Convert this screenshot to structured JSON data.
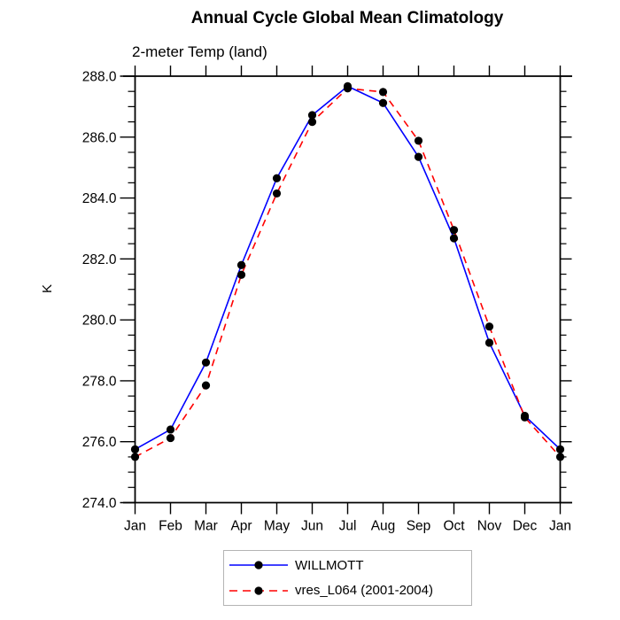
{
  "title": "Annual Cycle Global Mean Climatology",
  "chart_data": {
    "type": "line",
    "title": "Annual Cycle Global Mean Climatology",
    "subtitle": "2-meter Temp (land)",
    "ylabel": "K",
    "xlabel": "",
    "x": [
      "Jan",
      "Feb",
      "Mar",
      "Apr",
      "May",
      "Jun",
      "Jul",
      "Aug",
      "Sep",
      "Oct",
      "Nov",
      "Dec",
      "Jan"
    ],
    "ylim": [
      274.0,
      288.0
    ],
    "ytick_step": 2.0,
    "ytick_minor_step": 0.5,
    "ytick_label_format": "one_decimal",
    "grid": false,
    "legend_position": "bottom-center",
    "axis_color": "#000000",
    "marker_color": "#000000",
    "series": [
      {
        "name": "WILLMOTT",
        "color": "#0000ff",
        "dash": "none",
        "marker": "filled-circle",
        "values": [
          275.75,
          276.4,
          278.6,
          281.8,
          284.65,
          286.72,
          287.67,
          287.12,
          285.35,
          282.68,
          279.25,
          276.85,
          275.75
        ]
      },
      {
        "name": "vres_L064 (2001-2004)",
        "color": "#ff0000",
        "dash": "8,6",
        "marker": "filled-circle",
        "values": [
          275.5,
          276.12,
          277.85,
          281.48,
          284.15,
          286.5,
          287.6,
          287.48,
          285.88,
          282.95,
          279.78,
          276.8,
          275.5
        ]
      }
    ]
  }
}
